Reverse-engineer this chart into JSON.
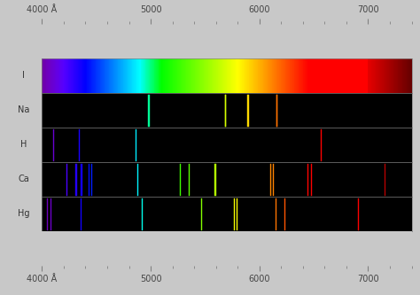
{
  "title": "",
  "xlim": [
    4000,
    7400
  ],
  "xlabel": "Å",
  "background_color": "#000000",
  "outer_background": "#c8c8c8",
  "elements": [
    "I",
    "Na",
    "H",
    "Ca",
    "Hg"
  ],
  "spectrum_continuous": true,
  "Na_lines": [
    {
      "wavelength": 4978,
      "color": "#00b8c0"
    },
    {
      "wavelength": 4983,
      "color": "#00b8be"
    },
    {
      "wavelength": 5683,
      "color": "#c8d400"
    },
    {
      "wavelength": 5688,
      "color": "#d0d000"
    },
    {
      "wavelength": 5890,
      "color": "#ffff00"
    },
    {
      "wavelength": 5896,
      "color": "#ffff00"
    },
    {
      "wavelength": 6154,
      "color": "#b06000"
    },
    {
      "wavelength": 6160,
      "color": "#b06000"
    }
  ],
  "H_lines": [
    {
      "wavelength": 4102,
      "color": "#6000a0"
    },
    {
      "wavelength": 4340,
      "color": "#4040c0"
    },
    {
      "wavelength": 4861,
      "color": "#00a0d0"
    },
    {
      "wavelength": 6563,
      "color": "#cc0000"
    }
  ],
  "Ca_lines": [
    {
      "wavelength": 4226,
      "color": "#6000b0"
    },
    {
      "wavelength": 4307,
      "color": "#4030c0"
    },
    {
      "wavelength": 4318,
      "color": "#4030c0"
    },
    {
      "wavelength": 4355,
      "color": "#3838c0"
    },
    {
      "wavelength": 4360,
      "color": "#3838c0"
    },
    {
      "wavelength": 4425,
      "color": "#3040c0"
    },
    {
      "wavelength": 4455,
      "color": "#3050bf"
    },
    {
      "wavelength": 4878,
      "color": "#00a8d0"
    },
    {
      "wavelength": 5270,
      "color": "#60c840"
    },
    {
      "wavelength": 5349,
      "color": "#80c830"
    },
    {
      "wavelength": 5590,
      "color": "#c8d800"
    },
    {
      "wavelength": 5598,
      "color": "#c8d800"
    },
    {
      "wavelength": 6103,
      "color": "#b06800"
    },
    {
      "wavelength": 6122,
      "color": "#b06800"
    },
    {
      "wavelength": 6439,
      "color": "#c82000"
    },
    {
      "wavelength": 6472,
      "color": "#c01800"
    },
    {
      "wavelength": 7148,
      "color": "#cc0000"
    }
  ],
  "Hg_lines": [
    {
      "wavelength": 4047,
      "color": "#7000a0"
    },
    {
      "wavelength": 4078,
      "color": "#6800a0"
    },
    {
      "wavelength": 4358,
      "color": "#3838c0"
    },
    {
      "wavelength": 4916,
      "color": "#00b8c8"
    },
    {
      "wavelength": 5461,
      "color": "#40d840"
    },
    {
      "wavelength": 5769,
      "color": "#f0e000"
    },
    {
      "wavelength": 5791,
      "color": "#f0e000"
    },
    {
      "wavelength": 6152,
      "color": "#b06800"
    },
    {
      "wavelength": 6234,
      "color": "#b06000"
    },
    {
      "wavelength": 6907,
      "color": "#cc0000"
    }
  ]
}
